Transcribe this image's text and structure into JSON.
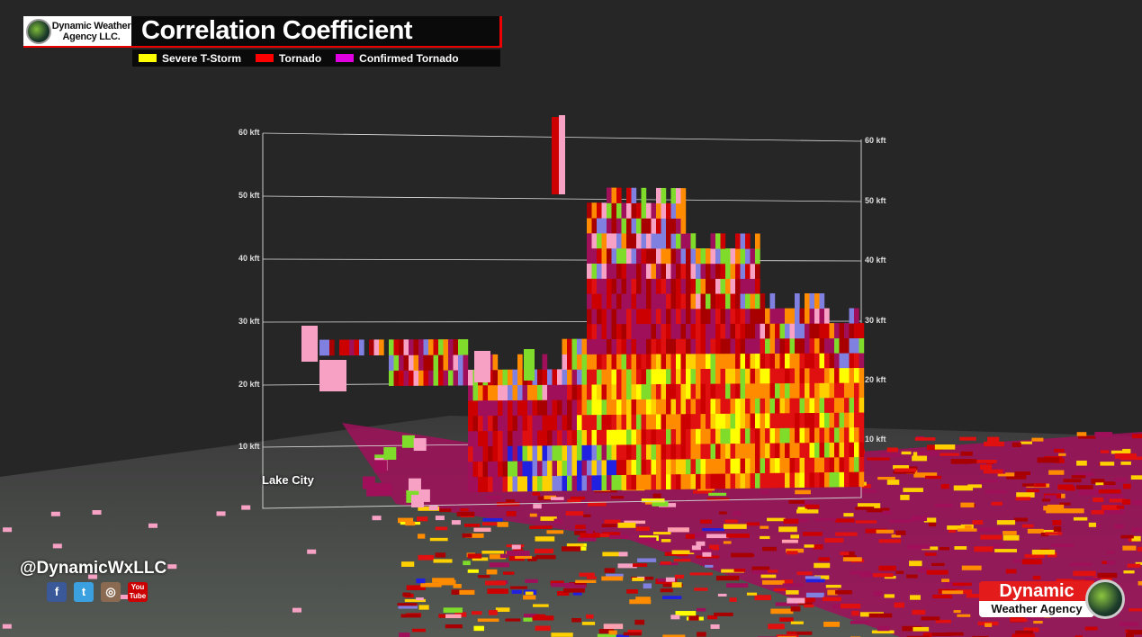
{
  "header": {
    "logo_text_line1": "Dynamic Weather",
    "logo_text_line2": "Agency LLC.",
    "title": "Correlation Coefficient"
  },
  "legend": [
    {
      "label": "Severe T-Storm",
      "color": "#ffff00"
    },
    {
      "label": "Tornado",
      "color": "#ff0000"
    },
    {
      "label": "Confirmed Tornado",
      "color": "#e000e0"
    }
  ],
  "axis": {
    "left_labels": [
      "60 kft",
      "50 kft",
      "40 kft",
      "30 kft",
      "20 kft",
      "10 kft"
    ],
    "right_labels": [
      "60 kft",
      "50 kft",
      "40 kft",
      "30 kft",
      "20 kft",
      "10 kft"
    ]
  },
  "map": {
    "city_label": "Lake City"
  },
  "social": {
    "handle": "@DynamicWxLLC",
    "icons": [
      "facebook-icon",
      "twitter-icon",
      "instagram-icon",
      "youtube-icon"
    ],
    "youtube_text": "You Tube"
  },
  "brand": {
    "line1": "Dynamic",
    "line2": "Weather Agency"
  },
  "palette": [
    "#cc0000",
    "#a80000",
    "#a0105a",
    "#e01010",
    "#ff8c00",
    "#ffd000",
    "#ffff00",
    "#7fdc2a",
    "#2020e0",
    "#f7a1c4",
    "#8080e0",
    "#ffa0b0"
  ]
}
